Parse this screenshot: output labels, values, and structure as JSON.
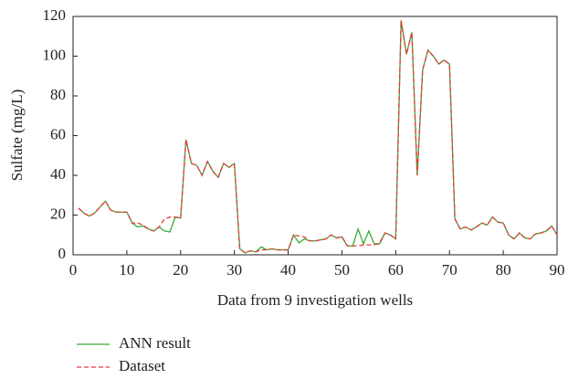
{
  "chart_data": {
    "type": "line",
    "x_label": "Data from 9 investigation wells",
    "y_label": "Sulfate (mg/L)",
    "x": [
      1,
      2,
      3,
      4,
      5,
      6,
      7,
      8,
      9,
      10,
      11,
      12,
      13,
      14,
      15,
      16,
      17,
      18,
      19,
      20,
      21,
      22,
      23,
      24,
      25,
      26,
      27,
      28,
      29,
      30,
      31,
      32,
      33,
      34,
      35,
      36,
      37,
      38,
      39,
      40,
      41,
      42,
      43,
      44,
      45,
      46,
      47,
      48,
      49,
      50,
      51,
      52,
      53,
      54,
      55,
      56,
      57,
      58,
      59,
      60,
      61,
      62,
      63,
      64,
      65,
      66,
      67,
      68,
      69,
      70,
      71,
      72,
      73,
      74,
      75,
      76,
      77,
      78,
      79,
      80,
      81,
      82,
      83,
      84,
      85,
      86,
      87,
      88,
      89,
      90
    ],
    "series": [
      {
        "name": "ANN result",
        "color": "#3aaa35",
        "dash": false,
        "values": [
          23.5,
          21,
          19.5,
          21,
          24,
          27,
          22.5,
          21.5,
          21.5,
          21.5,
          16,
          14,
          14.5,
          13,
          12,
          14,
          12,
          11.5,
          19,
          18.5,
          58,
          46,
          45,
          40,
          47,
          42,
          39,
          46,
          44,
          46,
          3,
          1,
          2,
          1.5,
          4,
          2.5,
          3,
          2.5,
          2.5,
          2.5,
          10,
          6,
          8,
          7,
          7,
          7.5,
          8,
          10,
          8.5,
          9,
          4.5,
          4.5,
          13,
          5.5,
          12,
          5.5,
          5.5,
          11,
          10,
          8,
          118,
          101,
          112,
          40,
          93,
          103,
          100,
          96,
          98,
          96,
          18,
          13,
          14,
          12.5,
          14,
          16,
          15,
          19,
          16.5,
          16,
          10,
          8,
          11,
          8.5,
          8,
          10.5,
          11,
          12,
          14.5,
          10
        ]
      },
      {
        "name": "Dataset",
        "color": "#e8383d",
        "dash": true,
        "values": [
          23.5,
          21,
          19.5,
          21,
          24,
          27,
          22.5,
          21.5,
          21.5,
          21.5,
          16,
          16,
          15,
          13,
          12,
          14,
          18,
          19,
          19,
          18.5,
          58,
          46,
          45,
          40,
          47,
          42,
          39,
          46,
          44,
          46,
          3,
          1,
          2,
          1.5,
          2.5,
          2.5,
          3,
          2.5,
          2.5,
          2.5,
          10,
          9.5,
          9,
          7,
          7,
          7.5,
          8,
          10,
          8.5,
          9,
          4.5,
          4.5,
          4.5,
          5,
          5,
          5,
          6,
          11,
          10,
          8,
          118,
          101,
          112,
          40,
          93,
          103,
          100,
          96,
          98,
          96,
          18,
          13,
          14,
          12.5,
          14,
          16,
          15,
          19,
          16.5,
          16,
          10,
          8,
          11,
          8.5,
          8,
          10.5,
          11,
          12,
          14.5,
          10
        ]
      }
    ],
    "xlim": [
      0,
      90
    ],
    "xticks": [
      0,
      10,
      20,
      30,
      40,
      50,
      60,
      70,
      80,
      90
    ],
    "ylim": [
      0,
      120
    ],
    "yticks": [
      0,
      20,
      40,
      60,
      80,
      100,
      120
    ],
    "grid": false
  }
}
